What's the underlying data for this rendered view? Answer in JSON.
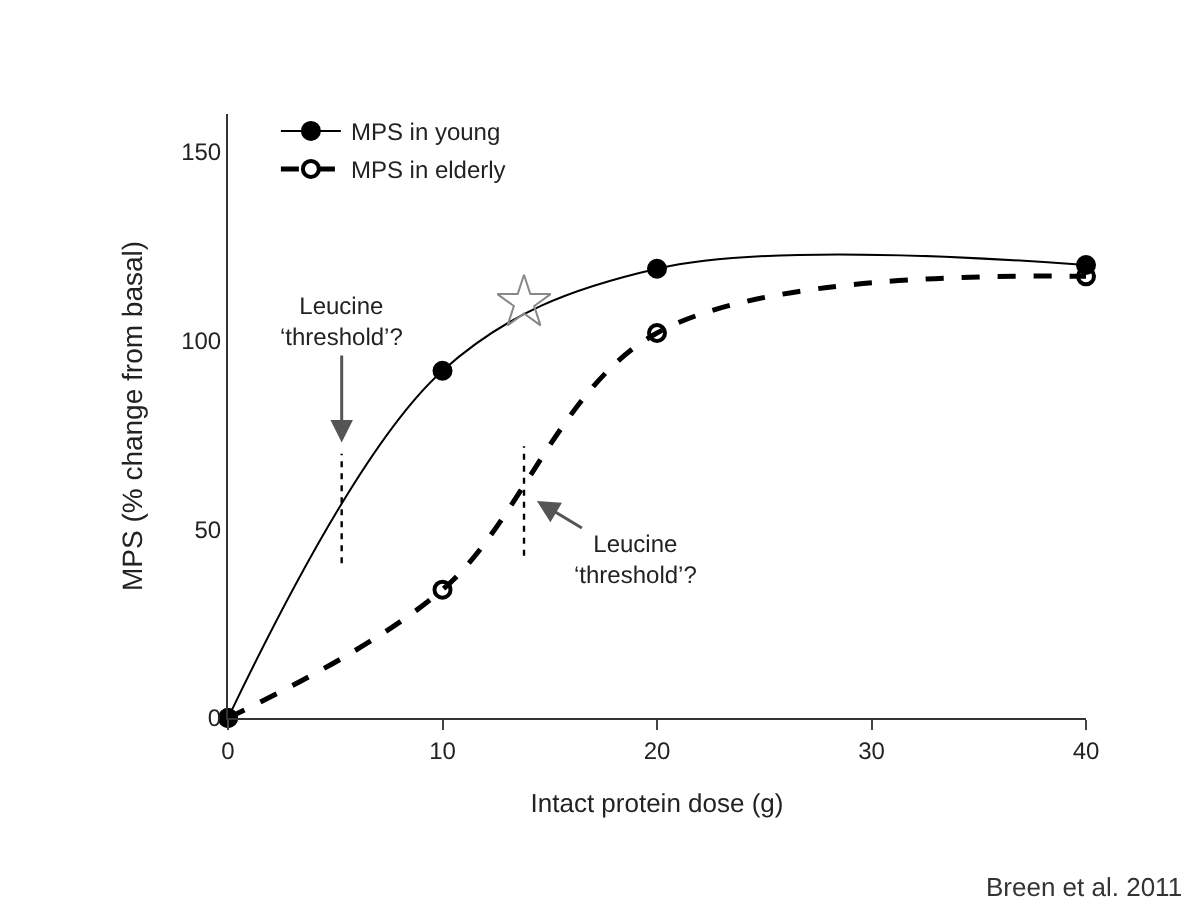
{
  "chart_data": {
    "type": "line",
    "xlabel": "Intact protein dose (g)",
    "ylabel": "MPS (% change from basal)",
    "series": [
      {
        "name": "MPS in young",
        "color": "#000000",
        "x": [
          0,
          10,
          20,
          40
        ],
        "values": [
          0,
          92,
          119,
          120
        ],
        "line_style": "solid",
        "marker": "circle"
      },
      {
        "name": "MPS in elderly",
        "color": "#000000",
        "x": [
          0,
          10,
          20,
          40
        ],
        "values": [
          0,
          34,
          102,
          117
        ],
        "line_style": "dashed",
        "marker": "circle"
      },
      {
        "type": "scatter",
        "color": "#888888",
        "x": [
          13.8
        ],
        "values": [
          110
        ],
        "marker": "star"
      },
      {
        "type": "line",
        "color": "#000000",
        "x": [
          5.3,
          5.3
        ],
        "values": [
          41,
          70
        ],
        "line_style": "dotted",
        "marker": "none"
      },
      {
        "type": "line",
        "color": "#000000",
        "x": [
          13.8,
          13.8
        ],
        "values": [
          43,
          72
        ],
        "line_style": "dotted",
        "marker": "none"
      }
    ],
    "annotations": [
      "Leucine\n‘threshold’?",
      "Leucine\n‘threshold’?",
      "Breen et al. 2011"
    ],
    "xlim": [
      0,
      40
    ],
    "xticks": [
      0,
      10,
      20,
      30,
      40
    ],
    "ylim": [
      0,
      160
    ],
    "yticks": [
      0,
      50,
      100,
      150
    ],
    "legend": "top left"
  }
}
